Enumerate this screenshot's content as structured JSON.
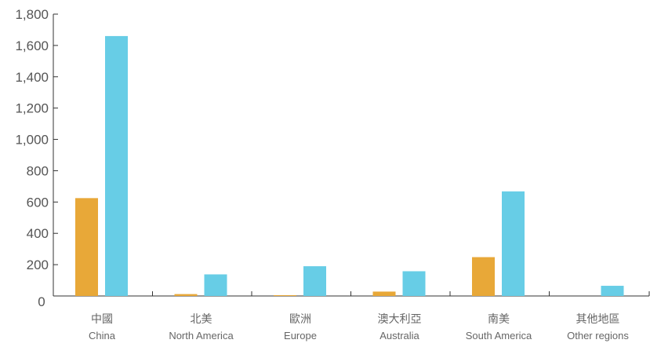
{
  "chart_data": {
    "type": "bar",
    "title": "",
    "xlabel": "",
    "ylabel": "",
    "ylim": [
      0,
      1800
    ],
    "y_ticks": [
      "0",
      "200",
      "400",
      "600",
      "800",
      "1,000",
      "1,200",
      "1,400",
      "1,600",
      "1,800"
    ],
    "grid": false,
    "legend": "none",
    "categories": [
      {
        "zh": "中國",
        "en": "China"
      },
      {
        "zh": "北美",
        "en": "North America"
      },
      {
        "zh": "歐洲",
        "en": "Europe"
      },
      {
        "zh": "澳大利亞",
        "en": "Australia"
      },
      {
        "zh": "南美",
        "en": "South America"
      },
      {
        "zh": "其他地區",
        "en": "Other regions"
      }
    ],
    "series": [
      {
        "color": "#E8A838",
        "values": [
          625,
          12,
          5,
          28,
          248,
          0
        ]
      },
      {
        "color": "#67CDE6",
        "values": [
          1660,
          138,
          190,
          158,
          668,
          65
        ]
      }
    ]
  },
  "colors": {
    "axis": "#333333",
    "tick_label": "#555555",
    "category_label": "#666666"
  }
}
